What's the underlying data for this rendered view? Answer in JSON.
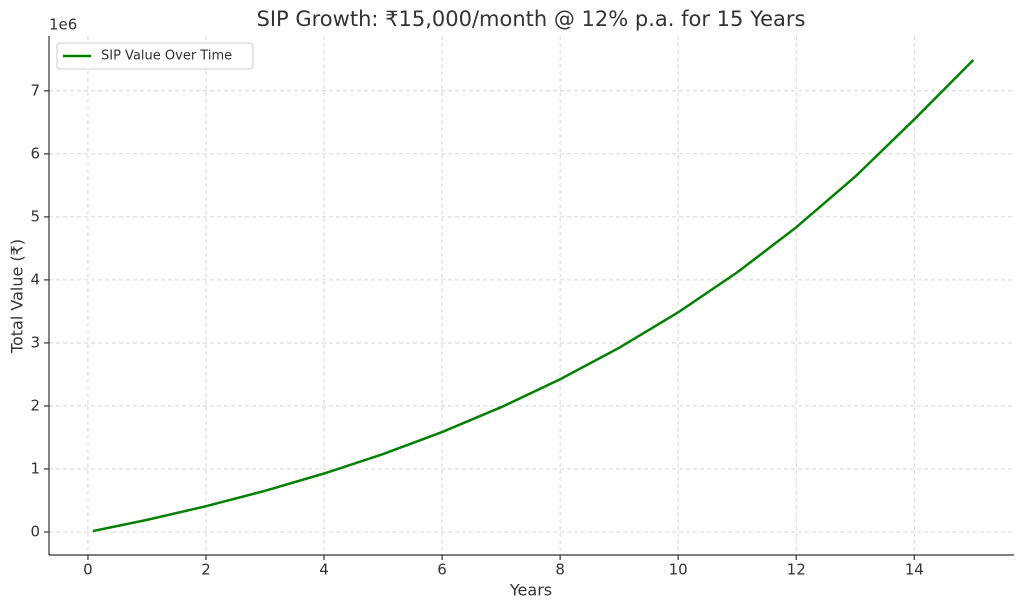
{
  "chart_data": {
    "type": "line",
    "title": "SIP Growth: ₹15,000/month @ 12% p.a. for 15 Years",
    "x_label": "Years",
    "y_label": "Total Value (₹)",
    "y_offset_label": "1e6",
    "x": [
      0.0833,
      1,
      2,
      3,
      4,
      5,
      6,
      7,
      8,
      9,
      10,
      11,
      12,
      13,
      14,
      15
    ],
    "series": [
      {
        "name": "SIP Value Over Time",
        "color": "#008000",
        "values": [
          0.015,
          0.192,
          0.409,
          0.653,
          0.928,
          1.237,
          1.586,
          1.98,
          2.423,
          2.922,
          3.485,
          4.119,
          4.834,
          5.639,
          6.546,
          7.49
        ]
      }
    ],
    "xlim": [
      -0.66,
      15.69
    ],
    "ylim": [
      -0.365,
      7.87
    ],
    "xticks": [
      0,
      2,
      4,
      6,
      8,
      10,
      12,
      14
    ],
    "yticks": [
      0,
      1,
      2,
      3,
      4,
      5,
      6,
      7
    ],
    "grid": true,
    "legend": "upper-left"
  }
}
